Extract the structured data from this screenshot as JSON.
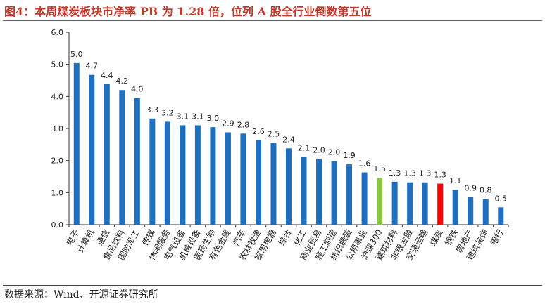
{
  "title": "图4：本周煤炭板块市净率 PB 为 1.28 倍，位列 A 股全行业倒数第五位",
  "source": "数据来源：Wind、开源证券研究所",
  "colors": {
    "default": "#1f6fbf",
    "benchmark": "#8cc63f",
    "highlight": "#ff0000",
    "title": "#c0392b"
  },
  "chart_data": {
    "type": "bar",
    "categories": [
      "电子",
      "计算机",
      "通信",
      "食品饮料",
      "国防军工",
      "传媒",
      "休闲服务",
      "电气设备",
      "机械设备",
      "医药生物",
      "有色金属",
      "汽车",
      "农林牧渔",
      "家用电器",
      "综合",
      "化工",
      "商业贸易",
      "轻工制造",
      "纺织服装",
      "公用事业",
      "沪深300",
      "建筑材料",
      "非银金融",
      "交通运输",
      "煤炭",
      "钢铁",
      "房地产",
      "建筑装饰",
      "银行"
    ],
    "values": [
      5.04,
      4.67,
      4.38,
      4.2,
      3.95,
      3.31,
      3.21,
      3.1,
      3.1,
      3.04,
      2.88,
      2.84,
      2.63,
      2.55,
      2.38,
      2.11,
      2.05,
      1.98,
      1.88,
      1.63,
      1.47,
      1.34,
      1.32,
      1.32,
      1.28,
      1.09,
      0.86,
      0.8,
      0.54
    ],
    "labels": [
      "5.0",
      "4.7",
      "4.4",
      "4.2",
      "4.0",
      "3.3",
      "3.2",
      "3.1",
      "3.1",
      "3.0",
      "2.9",
      "2.8",
      "2.6",
      "2.5",
      "2.4",
      "2.1",
      "2.0",
      "2.0",
      "1.9",
      "1.6",
      "1.5",
      "1.3",
      "1.3",
      "1.3",
      "1.3",
      "1.1",
      "0.9",
      "0.8",
      "0.5"
    ],
    "benchmark_category": "沪深300",
    "highlight_category": "煤炭",
    "ylim": [
      0,
      6
    ],
    "yticks": [
      "0.0",
      "1.0",
      "2.0",
      "3.0",
      "4.0",
      "5.0",
      "6.0"
    ],
    "grid": false,
    "legend": "none"
  }
}
